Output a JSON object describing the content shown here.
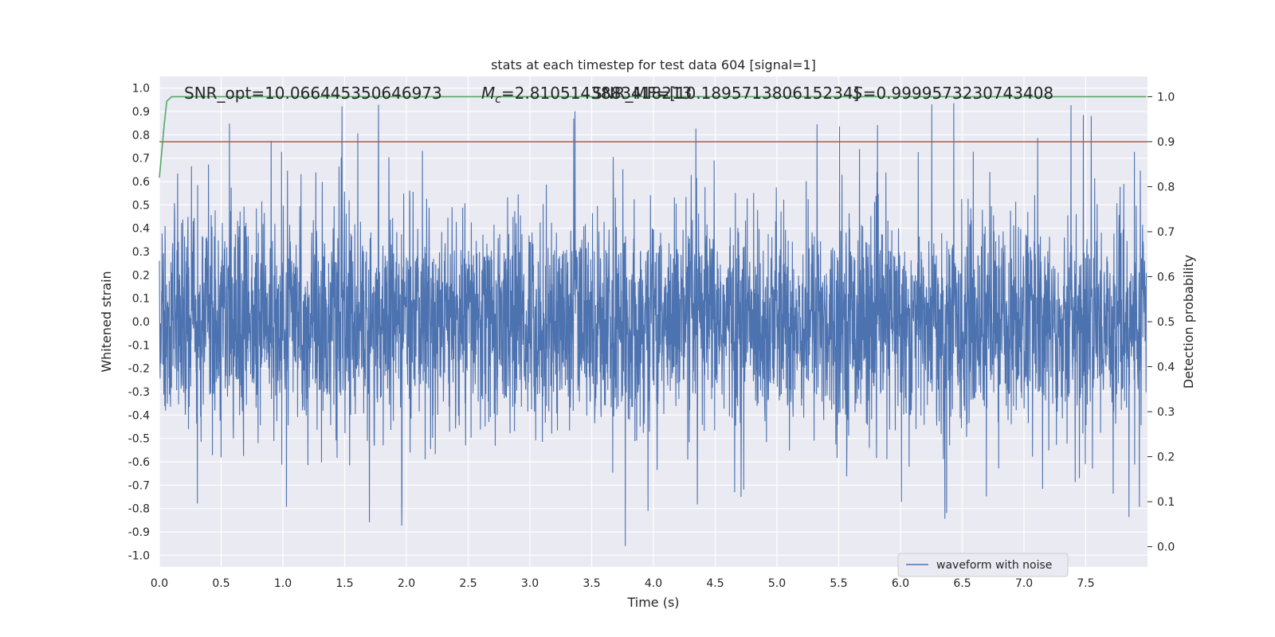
{
  "chart_data": {
    "type": "line",
    "title": "stats at each timestep for test data 604 [signal=1]",
    "xlabel": "Time (s)",
    "ylabel": "Whitened strain",
    "ylabel_right": "Detection probability",
    "xlim": [
      0.0,
      8.0
    ],
    "ylim": [
      -1.05,
      1.05
    ],
    "ylim_right": [
      -0.045,
      1.045
    ],
    "x_ticks": [
      "0.0",
      "0.5",
      "1.0",
      "1.5",
      "2.0",
      "2.5",
      "3.0",
      "3.5",
      "4.0",
      "4.5",
      "5.0",
      "5.5",
      "6.0",
      "6.5",
      "7.0",
      "7.5"
    ],
    "y_ticks": [
      "1.0",
      "0.9",
      "0.8",
      "0.7",
      "0.6",
      "0.5",
      "0.4",
      "0.3",
      "0.2",
      "0.1",
      "0.0",
      "-0.1",
      "-0.2",
      "-0.3",
      "-0.4",
      "-0.5",
      "-0.6",
      "-0.7",
      "-0.8",
      "-0.9",
      "-1.0"
    ],
    "y_ticks_right": [
      "1.0",
      "0.9",
      "0.8",
      "0.7",
      "0.6",
      "0.5",
      "0.4",
      "0.3",
      "0.2",
      "0.1",
      "0.0"
    ],
    "grid": true,
    "legend_location": "lower-right",
    "annotations": [
      "SNR_opt=10.066445350646973",
      "$M_c$=2.8105143883418213",
      "SNR_MF=[10.189571380615234]",
      "$S$=0.9999573230743408"
    ],
    "series": [
      {
        "name": "waveform with noise",
        "axis": "left",
        "color": "#4c72b0",
        "style": "noisy-waveform",
        "amplitude_range": [
          -0.96,
          1.0
        ],
        "x_range": [
          0.0,
          7.99
        ]
      },
      {
        "axis": "right",
        "color": "#55a868",
        "x": [
          0.0,
          0.02,
          0.04,
          0.06,
          0.08,
          0.1,
          0.15,
          0.2,
          0.5,
          1.0,
          2.0,
          3.0,
          4.0,
          5.0,
          6.0,
          7.0,
          7.99
        ],
        "y": [
          0.82,
          0.88,
          0.94,
          0.99,
          0.995,
          1.0,
          1.0,
          1.0,
          1.0,
          1.0,
          1.0,
          1.0,
          1.0,
          1.0,
          1.0,
          1.0,
          1.0
        ]
      },
      {
        "axis": "right",
        "color": "#c44e52",
        "style": "threshold",
        "y_constant": 0.9
      }
    ]
  },
  "colors": {
    "plot_background": "#eaeaf2",
    "grid": "#ffffff",
    "waveform": "#4c72b0",
    "probability": "#55a868",
    "threshold": "#c44e52"
  }
}
